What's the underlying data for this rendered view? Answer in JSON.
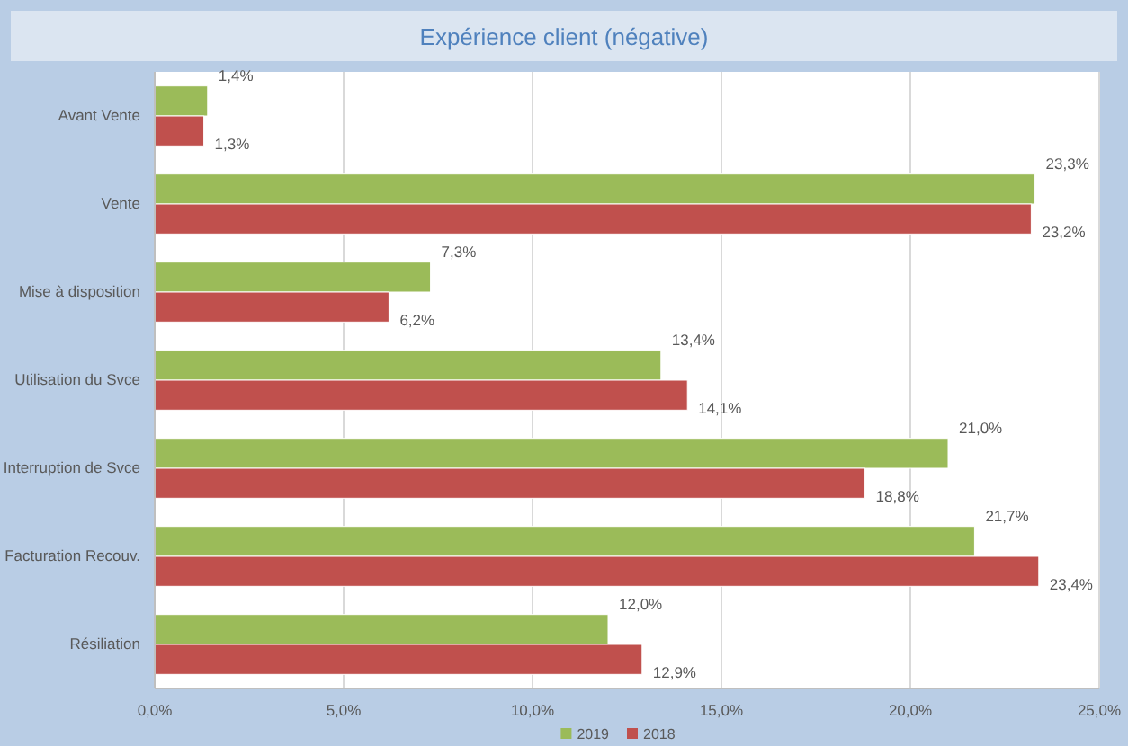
{
  "chart_data": {
    "type": "bar",
    "orientation": "horizontal",
    "title": "Expérience client (négative)",
    "categories": [
      "Avant Vente",
      "Vente",
      "Mise à disposition",
      "Utilisation du Svce",
      "Interruption de Svce",
      "Facturation Recouv.",
      "Résiliation"
    ],
    "series": [
      {
        "name": "2019",
        "color": "#9bbb59",
        "values": [
          1.4,
          23.3,
          7.3,
          13.4,
          21.0,
          21.7,
          12.0
        ],
        "value_labels": [
          "1,4%",
          "23,3%",
          "7,3%",
          "13,4%",
          "21,0%",
          "21,7%",
          "12,0%"
        ]
      },
      {
        "name": "2018",
        "color": "#c0504d",
        "values": [
          1.3,
          23.2,
          6.2,
          14.1,
          18.8,
          23.4,
          12.9
        ],
        "value_labels": [
          "1,3%",
          "23,2%",
          "6,2%",
          "14,1%",
          "18,8%",
          "23,4%",
          "12,9%"
        ]
      }
    ],
    "xlim": [
      0,
      25
    ],
    "xticks": [
      {
        "value": 0,
        "label": "0,0%"
      },
      {
        "value": 5,
        "label": "5,0%"
      },
      {
        "value": 10,
        "label": "10,0%"
      },
      {
        "value": 15,
        "label": "15,0%"
      },
      {
        "value": 20,
        "label": "20,0%"
      },
      {
        "value": 25,
        "label": "25,0%"
      }
    ],
    "grid": "x",
    "legend": "bottom"
  }
}
